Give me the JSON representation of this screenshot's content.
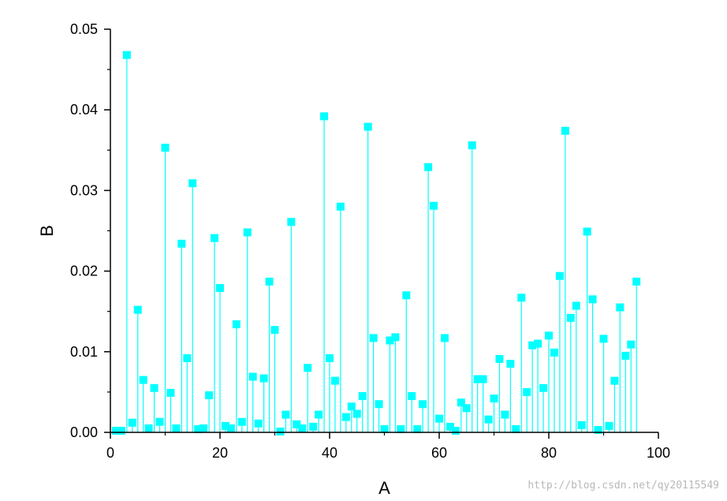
{
  "chart_data": {
    "type": "scatter",
    "style": "drop-lines with square markers",
    "xlabel": "A",
    "ylabel": "B",
    "xlim": [
      0,
      100
    ],
    "ylim": [
      0,
      0.05
    ],
    "x_ticks": [
      0,
      20,
      40,
      60,
      80,
      100
    ],
    "x_tick_labels": [
      "0",
      "20",
      "40",
      "60",
      "80",
      "100"
    ],
    "y_ticks": [
      0,
      0.01,
      0.02,
      0.03,
      0.04,
      0.05
    ],
    "y_tick_labels": [
      "0.00",
      "0.01",
      "0.02",
      "0.03",
      "0.04",
      "0.05"
    ],
    "grid": false,
    "legend": "none",
    "color": "#00FFFF",
    "series": [
      {
        "x": [
          1,
          2,
          3,
          4,
          5,
          6,
          7,
          8,
          9,
          10,
          11,
          12,
          13,
          14,
          15,
          16,
          17,
          18,
          19,
          20,
          21,
          22,
          23,
          24,
          25,
          26,
          27,
          28,
          29,
          30,
          31,
          32,
          33,
          34,
          35,
          36,
          37,
          38,
          39,
          40,
          41,
          42,
          43,
          44,
          45,
          46,
          47,
          48,
          49,
          50,
          51,
          52,
          53,
          54,
          55,
          56,
          57,
          58,
          59,
          60,
          61,
          62,
          63,
          64,
          65,
          66,
          67,
          68,
          69,
          70,
          71,
          72,
          73,
          74,
          75,
          76,
          77,
          78,
          79,
          80,
          81,
          82,
          83,
          84,
          85,
          86,
          87,
          88,
          89,
          90,
          91,
          92,
          93,
          94,
          95,
          96
        ],
        "y": [
          0.0002,
          0.0002,
          0.0468,
          0.0012,
          0.0152,
          0.0065,
          0.0005,
          0.0055,
          0.0013,
          0.0353,
          0.0049,
          0.0005,
          0.0234,
          0.0092,
          0.0309,
          0.0004,
          0.0005,
          0.0046,
          0.0241,
          0.0179,
          0.0008,
          0.0005,
          0.0134,
          0.0013,
          0.0248,
          0.0069,
          0.0011,
          0.0067,
          0.0187,
          0.0127,
          0.0001,
          0.0022,
          0.0261,
          0.001,
          0.0005,
          0.008,
          0.0007,
          0.0022,
          0.0392,
          0.0092,
          0.0064,
          0.028,
          0.0019,
          0.0032,
          0.0023,
          0.0045,
          0.0379,
          0.0117,
          0.0035,
          0.0004,
          0.0114,
          0.0118,
          0.0004,
          0.017,
          0.0045,
          0.0004,
          0.0035,
          0.0329,
          0.0281,
          0.0017,
          0.0117,
          0.0007,
          0.0002,
          0.0037,
          0.003,
          0.0356,
          0.0066,
          0.0066,
          0.0016,
          0.0042,
          0.0091,
          0.0022,
          0.0085,
          0.0004,
          0.0167,
          0.005,
          0.0108,
          0.011,
          0.0055,
          0.012,
          0.0099,
          0.0194,
          0.0374,
          0.0142,
          0.0157,
          0.0009,
          0.0249,
          0.0165,
          0.0003,
          0.0116,
          0.0008,
          0.0064,
          0.0155,
          0.0095,
          0.0109,
          0.0187
        ]
      }
    ]
  },
  "watermark": "http://blog.csdn.net/qy20115549"
}
